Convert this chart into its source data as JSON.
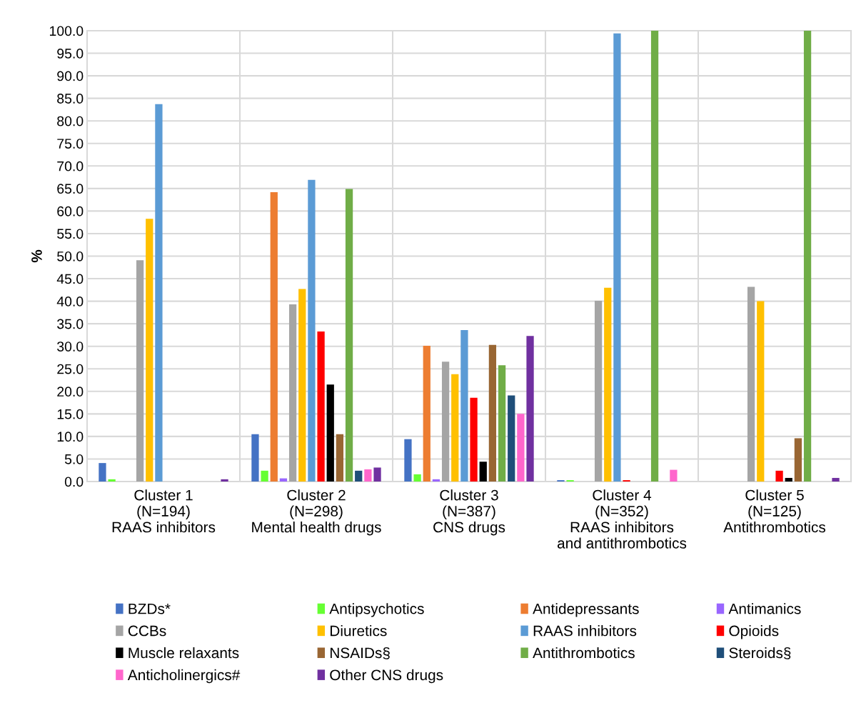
{
  "chart_data": {
    "type": "bar",
    "ylabel": "%",
    "categories": [
      "Cluster 1\n(N=194)\nRAAS inhibitors",
      "Cluster 2\n(N=298)\nMental health drugs",
      "Cluster 3\n(N=387)\nCNS drugs",
      "Cluster 4\n(N=352)\nRAAS inhibitors\nand antithrombotics",
      "Cluster 5\n(N=125)\nAntithrombotics"
    ],
    "series": [
      {
        "name": "BZDs*",
        "color": "#4472c4",
        "values": [
          4.1,
          10.5,
          9.4,
          0.3,
          0
        ]
      },
      {
        "name": "Antipsychotics",
        "color": "#66ff33",
        "values": [
          0.5,
          2.4,
          1.6,
          0.3,
          0
        ]
      },
      {
        "name": "Antidepressants",
        "color": "#ed7d31",
        "values": [
          0,
          64.2,
          30.1,
          0,
          0
        ]
      },
      {
        "name": "Antimanics",
        "color": "#9966ff",
        "values": [
          0,
          0.7,
          0.5,
          0,
          0
        ]
      },
      {
        "name": "CCBs",
        "color": "#a5a5a5",
        "values": [
          49.1,
          39.3,
          26.6,
          40.1,
          43.2
        ]
      },
      {
        "name": "Diuretics",
        "color": "#ffc000",
        "values": [
          58.3,
          42.7,
          23.8,
          43.0,
          40.0
        ]
      },
      {
        "name": "RAAS inhibitors",
        "color": "#5b9bd5",
        "values": [
          83.7,
          66.9,
          33.6,
          99.4,
          0
        ]
      },
      {
        "name": "Opioids",
        "color": "#ff0000",
        "values": [
          0,
          33.3,
          18.6,
          0.3,
          2.4
        ]
      },
      {
        "name": "Muscle relaxants",
        "color": "#000000",
        "values": [
          0,
          21.5,
          4.4,
          0,
          0.8
        ]
      },
      {
        "name": "NSAIDs§",
        "color": "#996633",
        "values": [
          0,
          10.5,
          30.3,
          0,
          9.6
        ]
      },
      {
        "name": "Antithrombotics",
        "color": "#70ad47",
        "values": [
          0,
          64.9,
          25.8,
          100,
          100
        ]
      },
      {
        "name": "Steroids§",
        "color": "#1f4e79",
        "values": [
          0,
          2.4,
          19.1,
          0,
          0
        ]
      },
      {
        "name": "Anticholinergics#",
        "color": "#ff66cc",
        "values": [
          0,
          2.7,
          15.0,
          2.6,
          0
        ]
      },
      {
        "name": "Other CNS drugs",
        "color": "#7030a0",
        "values": [
          0.5,
          3.1,
          32.3,
          0,
          0.8
        ]
      }
    ],
    "ylim": [
      0,
      100
    ],
    "yticks": [
      {
        "value": 0,
        "label": "0.0"
      },
      {
        "value": 5,
        "label": "5.0"
      },
      {
        "value": 10,
        "label": "10.0"
      },
      {
        "value": 15,
        "label": "15.0"
      },
      {
        "value": 20,
        "label": "20.0"
      },
      {
        "value": 25,
        "label": "25.0"
      },
      {
        "value": 30,
        "label": "30.0"
      },
      {
        "value": 35,
        "label": "35.0"
      },
      {
        "value": 40,
        "label": "40.0"
      },
      {
        "value": 45,
        "label": "45.0"
      },
      {
        "value": 50,
        "label": "50.0"
      },
      {
        "value": 55,
        "label": "55.0"
      },
      {
        "value": 60,
        "label": "60.0"
      },
      {
        "value": 65,
        "label": "65.0"
      },
      {
        "value": 70,
        "label": "70.0"
      },
      {
        "value": 75,
        "label": "75.0"
      },
      {
        "value": 80,
        "label": "80.0"
      },
      {
        "value": 85,
        "label": "85.0"
      },
      {
        "value": 90,
        "label": "90.0"
      },
      {
        "value": 95,
        "label": "95.0"
      },
      {
        "value": 100,
        "label": "100.0"
      }
    ],
    "grid": true,
    "legend": "bottom"
  }
}
